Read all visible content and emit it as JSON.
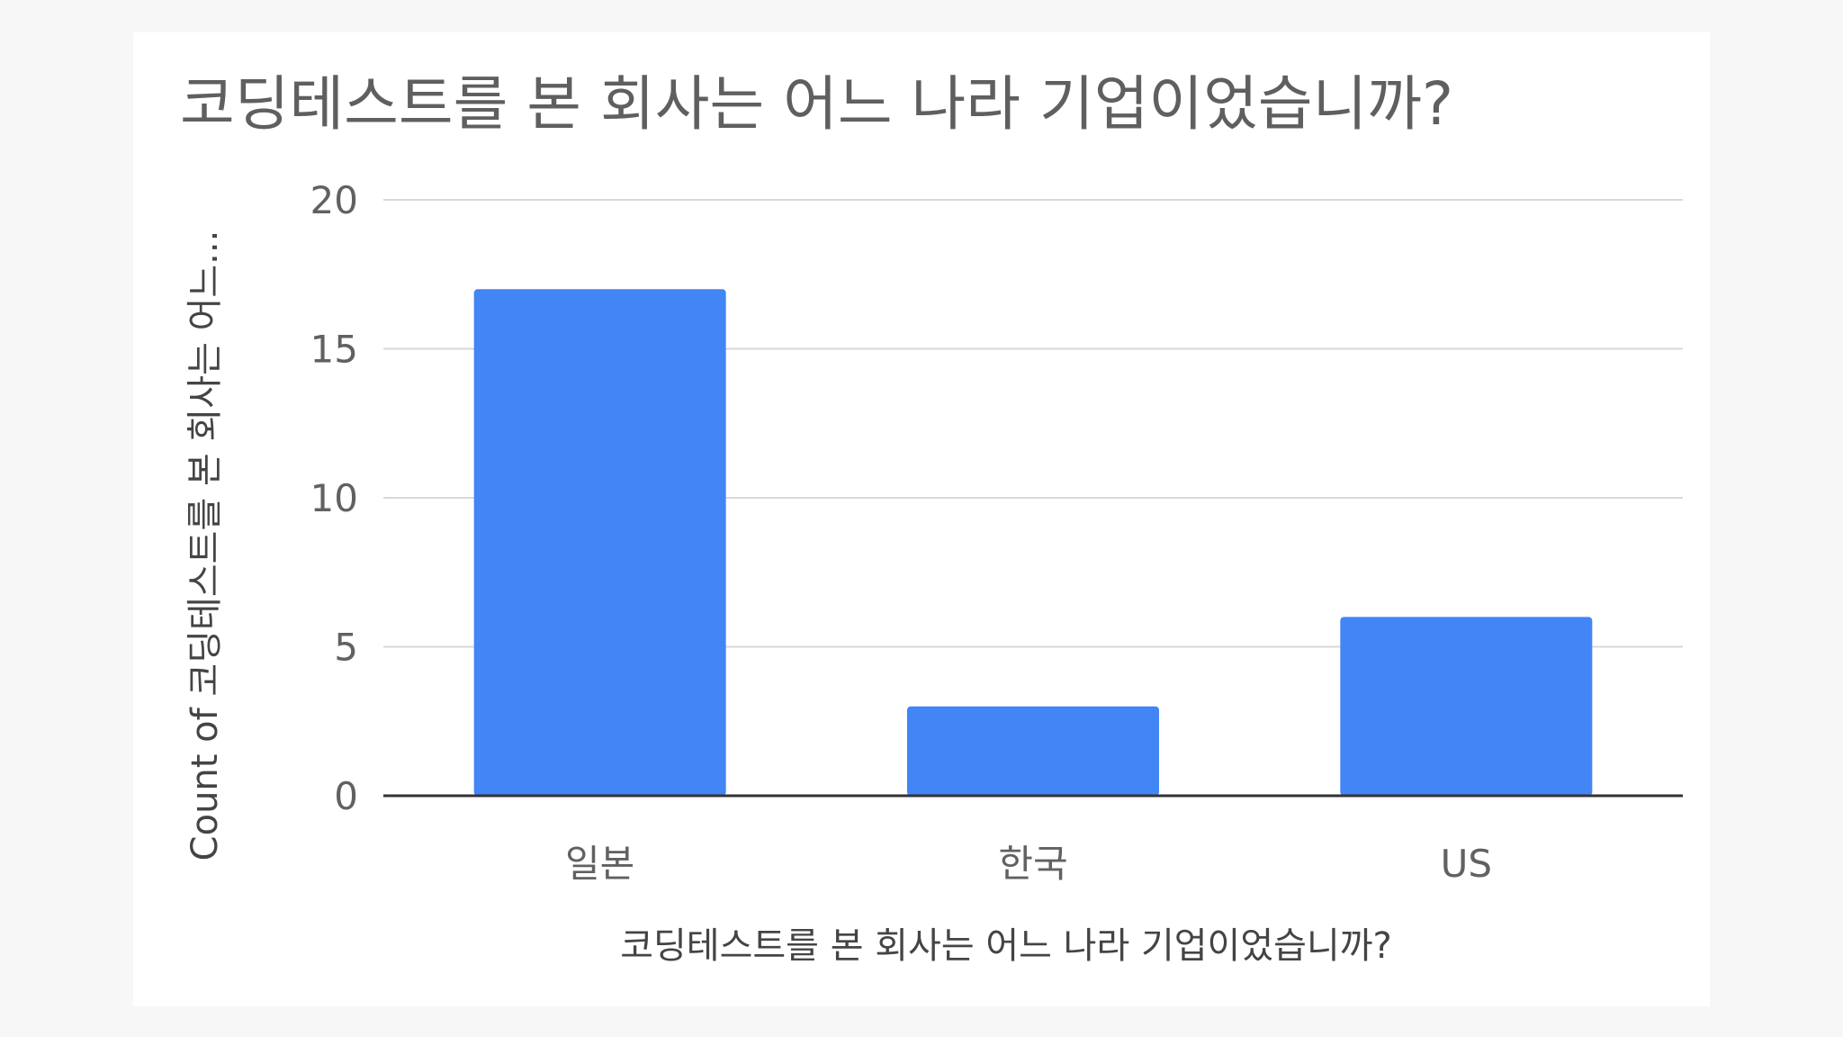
{
  "chart_data": {
    "type": "bar",
    "title": "코딩테스트를 본 회사는 어느 나라 기업이었습니까?",
    "xlabel": "코딩테스트를 본 회사는 어느 나라 기업이었습니까?",
    "ylabel": "Count of 코딩테스트를 본 회사는 어느...",
    "categories": [
      "일본",
      "한국",
      "US"
    ],
    "values": [
      17,
      3,
      6
    ],
    "ylim": [
      0,
      20
    ],
    "yticks": [
      0,
      5,
      10,
      15,
      20
    ],
    "grid": true,
    "legend": "none",
    "colors": {
      "bar": "#4285f4",
      "grid": "#d9d9d9",
      "axis": "#333333"
    }
  }
}
